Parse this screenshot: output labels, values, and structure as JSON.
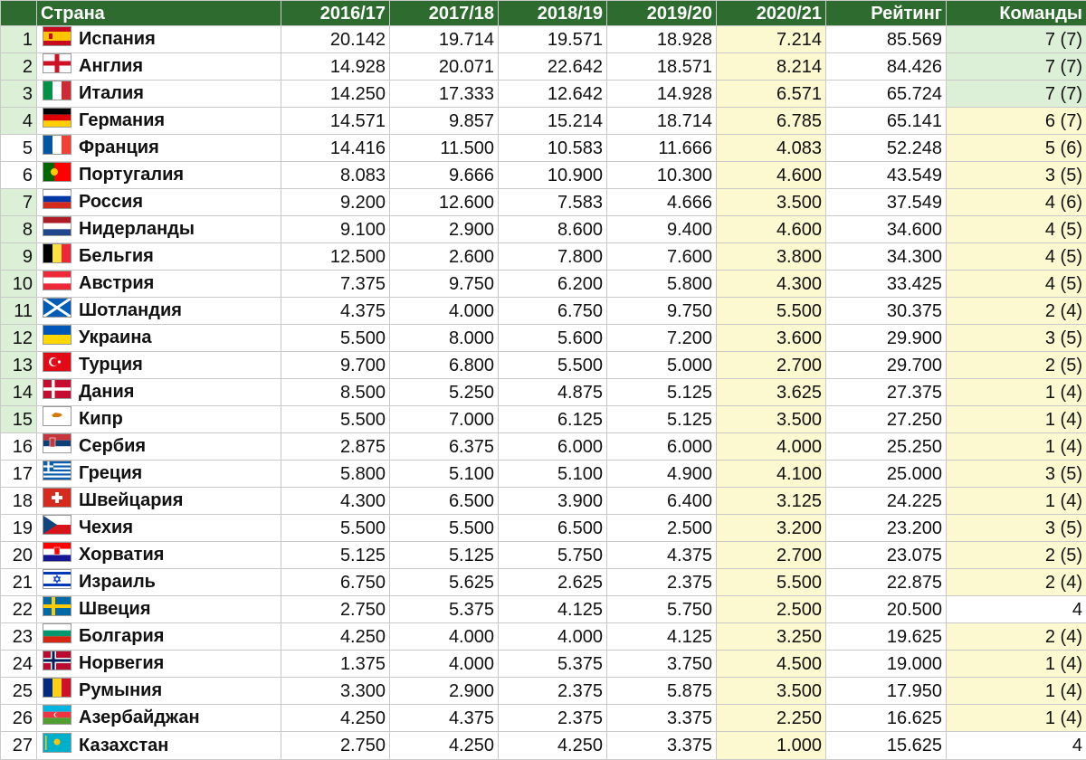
{
  "headers": [
    "",
    "Страна",
    "2016/17",
    "2017/18",
    "2018/19",
    "2019/20",
    "2020/21",
    "Рейтинг",
    "Команды"
  ],
  "rows": [
    {
      "rank": "1",
      "country": "Испания",
      "flag": "es",
      "v": [
        "20.142",
        "19.714",
        "19.571",
        "18.928",
        "7.214",
        "85.569",
        "7 (7)"
      ],
      "rankHl": true,
      "teamsHl": "green"
    },
    {
      "rank": "2",
      "country": "Англия",
      "flag": "en",
      "v": [
        "14.928",
        "20.071",
        "22.642",
        "18.571",
        "8.214",
        "84.426",
        "7 (7)"
      ],
      "rankHl": true,
      "teamsHl": "green"
    },
    {
      "rank": "3",
      "country": "Италия",
      "flag": "it",
      "v": [
        "14.250",
        "17.333",
        "12.642",
        "14.928",
        "6.571",
        "65.724",
        "7 (7)"
      ],
      "rankHl": true,
      "teamsHl": "green"
    },
    {
      "rank": "4",
      "country": "Германия",
      "flag": "de",
      "v": [
        "14.571",
        "9.857",
        "15.214",
        "18.714",
        "6.785",
        "65.141",
        "6 (7)"
      ],
      "rankHl": true,
      "teamsHl": "yellow"
    },
    {
      "rank": "5",
      "country": "Франция",
      "flag": "fr",
      "v": [
        "14.416",
        "11.500",
        "10.583",
        "11.666",
        "4.083",
        "52.248",
        "5 (6)"
      ],
      "rankHl": false,
      "teamsHl": "yellow"
    },
    {
      "rank": "6",
      "country": "Португалия",
      "flag": "pt",
      "v": [
        "8.083",
        "9.666",
        "10.900",
        "10.300",
        "4.600",
        "43.549",
        "3 (5)"
      ],
      "rankHl": false,
      "teamsHl": "yellow"
    },
    {
      "rank": "7",
      "country": "Россия",
      "flag": "ru",
      "v": [
        "9.200",
        "12.600",
        "7.583",
        "4.666",
        "3.500",
        "37.549",
        "4 (6)"
      ],
      "rankHl": true,
      "teamsHl": "yellow"
    },
    {
      "rank": "8",
      "country": "Нидерланды",
      "flag": "nl",
      "v": [
        "9.100",
        "2.900",
        "8.600",
        "9.400",
        "4.600",
        "34.600",
        "4 (5)"
      ],
      "rankHl": true,
      "teamsHl": "yellow"
    },
    {
      "rank": "9",
      "country": "Бельгия",
      "flag": "be",
      "v": [
        "12.500",
        "2.600",
        "7.800",
        "7.600",
        "3.800",
        "34.300",
        "4 (5)"
      ],
      "rankHl": true,
      "teamsHl": "yellow"
    },
    {
      "rank": "10",
      "country": "Австрия",
      "flag": "at",
      "v": [
        "7.375",
        "9.750",
        "6.200",
        "5.800",
        "4.300",
        "33.425",
        "4 (5)"
      ],
      "rankHl": true,
      "teamsHl": "yellow"
    },
    {
      "rank": "11",
      "country": "Шотландия",
      "flag": "sc",
      "v": [
        "4.375",
        "4.000",
        "6.750",
        "9.750",
        "5.500",
        "30.375",
        "2 (4)"
      ],
      "rankHl": true,
      "teamsHl": "yellow"
    },
    {
      "rank": "12",
      "country": "Украина",
      "flag": "ua",
      "v": [
        "5.500",
        "8.000",
        "5.600",
        "7.200",
        "3.600",
        "29.900",
        "3 (5)"
      ],
      "rankHl": true,
      "teamsHl": "yellow"
    },
    {
      "rank": "13",
      "country": "Турция",
      "flag": "tr",
      "v": [
        "9.700",
        "6.800",
        "5.500",
        "5.000",
        "2.700",
        "29.700",
        "2 (5)"
      ],
      "rankHl": true,
      "teamsHl": "yellow"
    },
    {
      "rank": "14",
      "country": "Дания",
      "flag": "dk",
      "v": [
        "8.500",
        "5.250",
        "4.875",
        "5.125",
        "3.625",
        "27.375",
        "1 (4)"
      ],
      "rankHl": true,
      "teamsHl": "yellow"
    },
    {
      "rank": "15",
      "country": "Кипр",
      "flag": "cy",
      "v": [
        "5.500",
        "7.000",
        "6.125",
        "5.125",
        "3.500",
        "27.250",
        "1 (4)"
      ],
      "rankHl": true,
      "teamsHl": "yellow"
    },
    {
      "rank": "16",
      "country": "Сербия",
      "flag": "rs",
      "v": [
        "2.875",
        "6.375",
        "6.000",
        "6.000",
        "4.000",
        "25.250",
        "1 (4)"
      ],
      "rankHl": false,
      "teamsHl": "yellow"
    },
    {
      "rank": "17",
      "country": "Греция",
      "flag": "gr",
      "v": [
        "5.800",
        "5.100",
        "5.100",
        "4.900",
        "4.100",
        "25.000",
        "3 (5)"
      ],
      "rankHl": false,
      "teamsHl": "yellow"
    },
    {
      "rank": "18",
      "country": "Швейцария",
      "flag": "ch",
      "v": [
        "4.300",
        "6.500",
        "3.900",
        "6.400",
        "3.125",
        "24.225",
        "1 (4)"
      ],
      "rankHl": false,
      "teamsHl": "yellow"
    },
    {
      "rank": "19",
      "country": "Чехия",
      "flag": "cz",
      "v": [
        "5.500",
        "5.500",
        "6.500",
        "2.500",
        "3.200",
        "23.200",
        "3 (5)"
      ],
      "rankHl": false,
      "teamsHl": "yellow"
    },
    {
      "rank": "20",
      "country": "Хорватия",
      "flag": "hr",
      "v": [
        "5.125",
        "5.125",
        "5.750",
        "4.375",
        "2.700",
        "23.075",
        "2 (5)"
      ],
      "rankHl": false,
      "teamsHl": "yellow"
    },
    {
      "rank": "21",
      "country": "Израиль",
      "flag": "il",
      "v": [
        "6.750",
        "5.625",
        "2.625",
        "2.375",
        "5.500",
        "22.875",
        "2 (4)"
      ],
      "rankHl": false,
      "teamsHl": "yellow"
    },
    {
      "rank": "22",
      "country": "Швеция",
      "flag": "se",
      "v": [
        "2.750",
        "5.375",
        "4.125",
        "5.750",
        "2.500",
        "20.500",
        "4"
      ],
      "rankHl": false,
      "teamsHl": "none"
    },
    {
      "rank": "23",
      "country": "Болгария",
      "flag": "bg",
      "v": [
        "4.250",
        "4.000",
        "4.000",
        "4.125",
        "3.250",
        "19.625",
        "2 (4)"
      ],
      "rankHl": false,
      "teamsHl": "yellow"
    },
    {
      "rank": "24",
      "country": "Норвегия",
      "flag": "no",
      "v": [
        "1.375",
        "4.000",
        "5.375",
        "3.750",
        "4.500",
        "19.000",
        "1 (4)"
      ],
      "rankHl": false,
      "teamsHl": "yellow"
    },
    {
      "rank": "25",
      "country": "Румыния",
      "flag": "ro",
      "v": [
        "3.300",
        "2.900",
        "2.375",
        "5.875",
        "3.500",
        "17.950",
        "1 (4)"
      ],
      "rankHl": false,
      "teamsHl": "yellow"
    },
    {
      "rank": "26",
      "country": "Азербайджан",
      "flag": "az",
      "v": [
        "4.250",
        "4.375",
        "2.375",
        "3.375",
        "2.250",
        "16.625",
        "1 (4)"
      ],
      "rankHl": false,
      "teamsHl": "yellow"
    },
    {
      "rank": "27",
      "country": "Казахстан",
      "flag": "kz",
      "v": [
        "2.750",
        "4.250",
        "4.250",
        "3.375",
        "1.000",
        "15.625",
        "4"
      ],
      "rankHl": false,
      "teamsHl": "none"
    }
  ],
  "colors": {
    "header": "#2e6b2e",
    "green": "#dcefd7",
    "yellow": "#fcf8cf",
    "grid": "#c9c9c9"
  }
}
